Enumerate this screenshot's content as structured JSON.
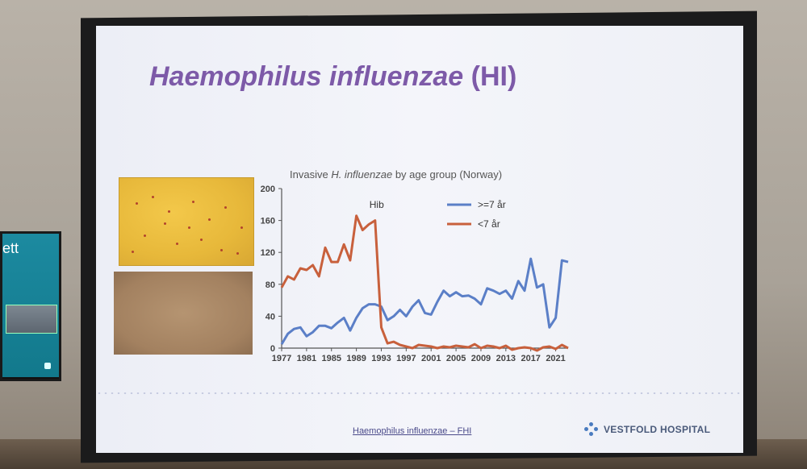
{
  "tv": {
    "title_fragment": "ett"
  },
  "slide": {
    "title_italic": "Haemophilus influenzae",
    "title_rest": " (HI)",
    "footer_link": "Haemophilus influenzae – FHI",
    "brand": "VESTFOLD HOSPITAL"
  },
  "chart_data": {
    "type": "line",
    "title_prefix": "Invasive ",
    "title_italic": "H. influenzae",
    "title_suffix": " by age group (Norway)",
    "annotation": "Hib",
    "ylim": [
      0,
      200
    ],
    "yticks": [
      0,
      40,
      80,
      120,
      160,
      200
    ],
    "xtick_labels": [
      "1977",
      "1981",
      "1985",
      "1989",
      "1993",
      "1997",
      "2001",
      "2005",
      "2009",
      "2013",
      "2017",
      "2021"
    ],
    "x": [
      1977,
      1978,
      1979,
      1980,
      1981,
      1982,
      1983,
      1984,
      1985,
      1986,
      1987,
      1988,
      1989,
      1990,
      1991,
      1992,
      1993,
      1994,
      1995,
      1996,
      1997,
      1998,
      1999,
      2000,
      2001,
      2002,
      2003,
      2004,
      2005,
      2006,
      2007,
      2008,
      2009,
      2010,
      2011,
      2012,
      2013,
      2014,
      2015,
      2016,
      2017,
      2018,
      2019,
      2020,
      2021,
      2022,
      2023
    ],
    "series": [
      {
        "name": ">=7 år",
        "color": "#5b7fc7",
        "values": [
          5,
          18,
          24,
          26,
          15,
          20,
          28,
          28,
          25,
          32,
          38,
          22,
          38,
          50,
          55,
          55,
          52,
          35,
          40,
          48,
          40,
          52,
          60,
          44,
          42,
          58,
          72,
          65,
          70,
          65,
          66,
          62,
          55,
          75,
          72,
          68,
          72,
          62,
          84,
          72,
          112,
          76,
          80,
          26,
          38,
          110,
          108
        ]
      },
      {
        "name": "<7 år",
        "color": "#c8603c",
        "values": [
          76,
          90,
          86,
          100,
          98,
          104,
          90,
          126,
          108,
          108,
          130,
          110,
          166,
          148,
          155,
          160,
          26,
          6,
          8,
          4,
          2,
          0,
          4,
          3,
          2,
          0,
          2,
          1,
          3,
          2,
          1,
          5,
          0,
          3,
          2,
          0,
          3,
          -2,
          0,
          1,
          0,
          -3,
          1,
          2,
          -1,
          4,
          0
        ]
      }
    ]
  }
}
